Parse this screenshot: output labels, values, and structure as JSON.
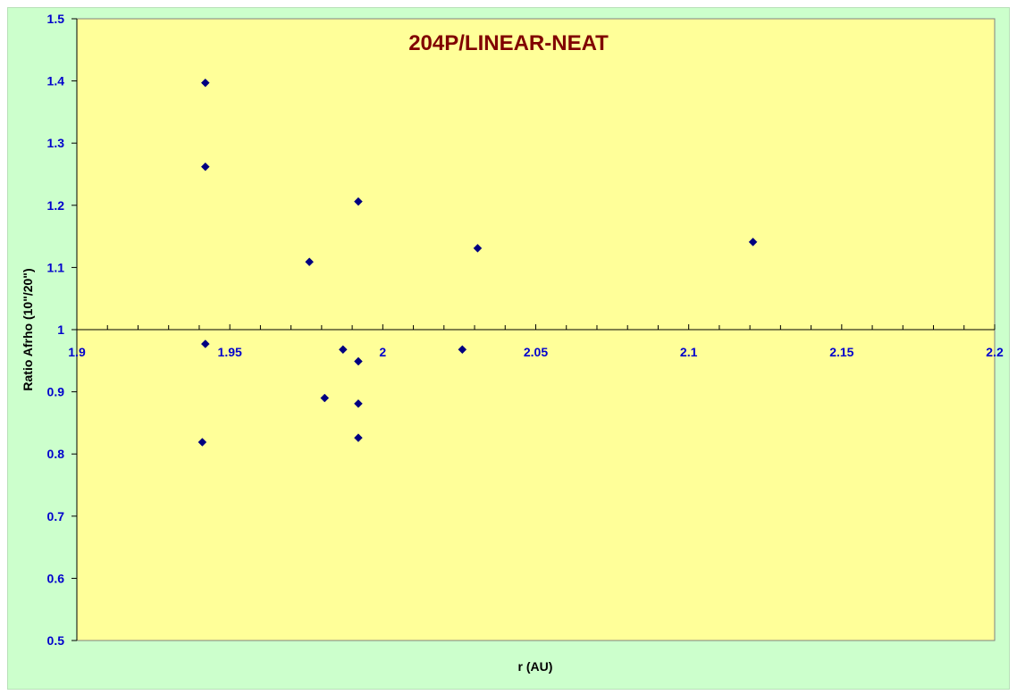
{
  "chart_data": {
    "type": "scatter",
    "title": "204P/LINEAR-NEAT",
    "xlabel": "r (AU)",
    "ylabel": "Ratio Afrho (10\"/20\")",
    "xlim": [
      1.9,
      2.2
    ],
    "ylim": [
      0.5,
      1.5
    ],
    "x_ticks": [
      "1.9",
      "1.95",
      "2",
      "2.05",
      "2.1",
      "2.15",
      "2.2"
    ],
    "y_ticks": [
      "0.5",
      "0.6",
      "0.7",
      "0.8",
      "0.9",
      "1",
      "1.1",
      "1.2",
      "1.3",
      "1.4",
      "1.5"
    ],
    "x_axis_crosses_at": 1.0,
    "grid": false,
    "legend": "none",
    "colors": {
      "background": "#ccffcc",
      "plot_area": "#ffff99",
      "marker": "#000080",
      "title": "#800000",
      "tick_labels": "#0000cc"
    },
    "points": [
      {
        "x": 1.942,
        "y": 1.397
      },
      {
        "x": 1.942,
        "y": 1.262
      },
      {
        "x": 1.992,
        "y": 1.206
      },
      {
        "x": 1.976,
        "y": 1.109
      },
      {
        "x": 2.031,
        "y": 1.131
      },
      {
        "x": 2.121,
        "y": 1.141
      },
      {
        "x": 1.942,
        "y": 0.977
      },
      {
        "x": 1.987,
        "y": 0.968
      },
      {
        "x": 1.992,
        "y": 0.949
      },
      {
        "x": 2.026,
        "y": 0.968
      },
      {
        "x": 1.981,
        "y": 0.89
      },
      {
        "x": 1.992,
        "y": 0.881
      },
      {
        "x": 1.992,
        "y": 0.826
      },
      {
        "x": 1.941,
        "y": 0.819
      }
    ]
  }
}
